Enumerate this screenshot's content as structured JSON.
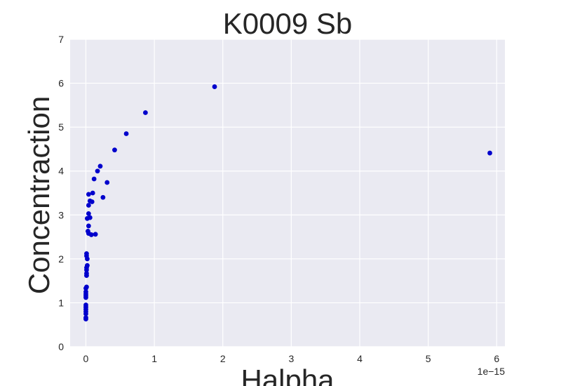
{
  "chart_data": {
    "type": "scatter",
    "title": "K0009 Sb",
    "xlabel": "Halpha",
    "ylabel": "Concentraction",
    "x_offset_label": "1e−15",
    "xlim": [
      -0.23,
      6.12
    ],
    "ylim": [
      0,
      7
    ],
    "xticks": [
      0,
      1,
      2,
      3,
      4,
      5,
      6
    ],
    "yticks": [
      0,
      1,
      2,
      3,
      4,
      5,
      6,
      7
    ],
    "grid": true,
    "background": "#eaeaf2",
    "grid_color": "#ffffff",
    "marker_color": "#0000cc",
    "points": [
      {
        "x": 0.0,
        "y": 0.63
      },
      {
        "x": 0.0,
        "y": 0.66
      },
      {
        "x": 0.0,
        "y": 0.75
      },
      {
        "x": 0.0,
        "y": 0.8
      },
      {
        "x": 0.0,
        "y": 0.85
      },
      {
        "x": 0.0,
        "y": 0.9
      },
      {
        "x": 0.0,
        "y": 0.95
      },
      {
        "x": 0.0,
        "y": 1.12
      },
      {
        "x": 0.0,
        "y": 1.16
      },
      {
        "x": 0.0,
        "y": 1.2
      },
      {
        "x": 0.0,
        "y": 1.25
      },
      {
        "x": 0.0,
        "y": 1.33
      },
      {
        "x": 0.01,
        "y": 1.36
      },
      {
        "x": 0.01,
        "y": 1.62
      },
      {
        "x": 0.01,
        "y": 1.67
      },
      {
        "x": 0.01,
        "y": 1.75
      },
      {
        "x": 0.01,
        "y": 1.8
      },
      {
        "x": 0.02,
        "y": 1.85
      },
      {
        "x": 0.02,
        "y": 2.0
      },
      {
        "x": 0.01,
        "y": 2.07
      },
      {
        "x": 0.01,
        "y": 2.12
      },
      {
        "x": 0.04,
        "y": 2.58
      },
      {
        "x": 0.03,
        "y": 2.63
      },
      {
        "x": 0.08,
        "y": 2.55
      },
      {
        "x": 0.14,
        "y": 2.56
      },
      {
        "x": 0.04,
        "y": 2.75
      },
      {
        "x": 0.02,
        "y": 2.92
      },
      {
        "x": 0.06,
        "y": 2.94
      },
      {
        "x": 0.04,
        "y": 3.03
      },
      {
        "x": 0.04,
        "y": 3.22
      },
      {
        "x": 0.06,
        "y": 3.32
      },
      {
        "x": 0.09,
        "y": 3.3
      },
      {
        "x": 0.04,
        "y": 3.47
      },
      {
        "x": 0.1,
        "y": 3.5
      },
      {
        "x": 0.25,
        "y": 3.4
      },
      {
        "x": 0.31,
        "y": 3.74
      },
      {
        "x": 0.12,
        "y": 3.82
      },
      {
        "x": 0.17,
        "y": 4.0
      },
      {
        "x": 0.21,
        "y": 4.11
      },
      {
        "x": 0.42,
        "y": 4.48
      },
      {
        "x": 0.59,
        "y": 4.85
      },
      {
        "x": 0.87,
        "y": 5.33
      },
      {
        "x": 1.88,
        "y": 5.92
      },
      {
        "x": 5.9,
        "y": 4.41
      }
    ]
  }
}
